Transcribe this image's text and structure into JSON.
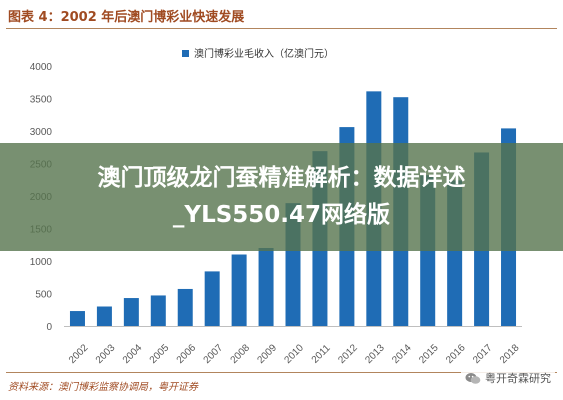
{
  "figure": {
    "title": "图表 4：2002 年后澳门博彩业快速发展",
    "source": "资料来源：澳门博彩监察协调局，粤开证券"
  },
  "overlay": {
    "title": "澳门顶级龙门蚕精准解析：数据详述_YLS550.47网络版"
  },
  "watermark": {
    "icon": "wechat-icon",
    "text": "粤开奇霖研究"
  },
  "colors": {
    "bar": "#1f6cb5",
    "title_text": "#a04b22",
    "rule": "#b2855d",
    "overlay_bg": "#56744e",
    "axis_text": "#595959"
  },
  "chart_data": {
    "type": "bar",
    "categories": [
      "2002",
      "2003",
      "2004",
      "2005",
      "2006",
      "2007",
      "2008",
      "2009",
      "2010",
      "2011",
      "2012",
      "2013",
      "2014",
      "2015",
      "2016",
      "2017",
      "2018"
    ],
    "series": [
      {
        "name": "澳门博彩业毛收入（亿澳门元）",
        "values": [
          230,
          300,
          430,
          470,
          570,
          840,
          1100,
          1200,
          1890,
          2690,
          3060,
          3610,
          3520,
          2320,
          2240,
          2670,
          3040
        ]
      }
    ],
    "xlabel": "",
    "ylabel": "",
    "ylim": [
      0,
      4000
    ],
    "yticks": [
      0,
      500,
      1000,
      1500,
      2000,
      2500,
      3000,
      3500,
      4000
    ],
    "grid": false,
    "legend": "top-center"
  }
}
